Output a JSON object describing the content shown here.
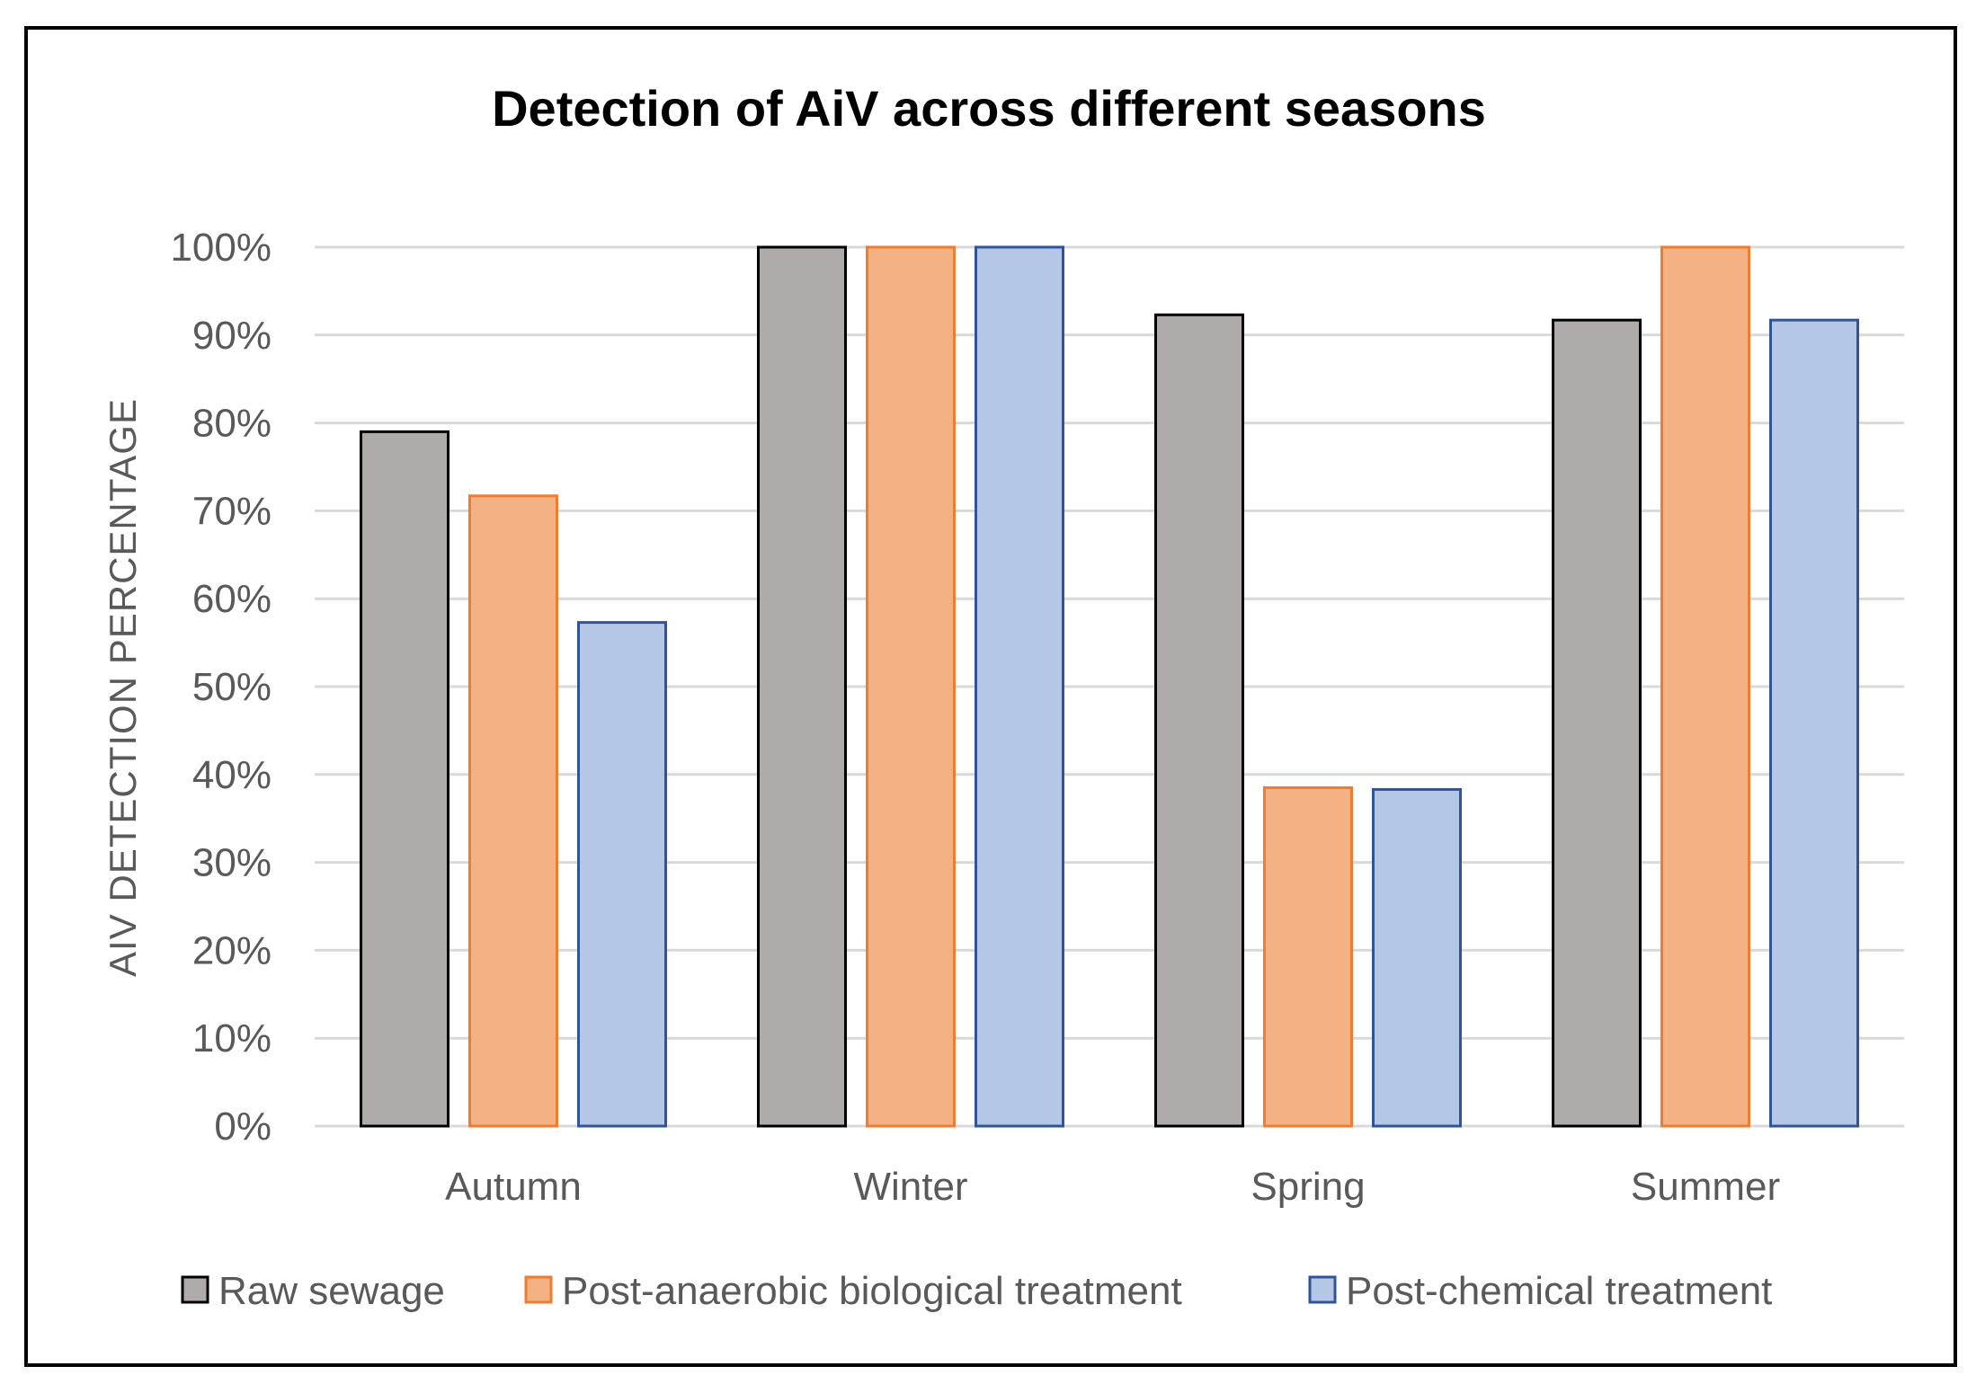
{
  "chart_data": {
    "type": "bar",
    "title": "Detection of AiV across different seasons",
    "xlabel": "",
    "ylabel": "AIV DETECTION PERCENTAGE",
    "ylim": [
      0,
      100
    ],
    "ytick_step": 10,
    "ytick_suffix": "%",
    "categories": [
      "Autumn",
      "Winter",
      "Spring",
      "Summer"
    ],
    "series": [
      {
        "name": "Raw sewage",
        "color": "#AFABAB",
        "stroke": "#000000",
        "values": [
          79,
          100,
          92.3,
          91.7
        ]
      },
      {
        "name": "Post-anaerobic biological treatment",
        "color": "#F4B183",
        "stroke": "#ED7D31",
        "values": [
          71.7,
          100,
          38.5,
          100
        ]
      },
      {
        "name": "Post-chemical treatment",
        "color": "#B4C7E7",
        "stroke": "#2F5597",
        "values": [
          57.3,
          100,
          38.3,
          91.7
        ]
      }
    ],
    "grid": true,
    "legend_position": "bottom"
  }
}
